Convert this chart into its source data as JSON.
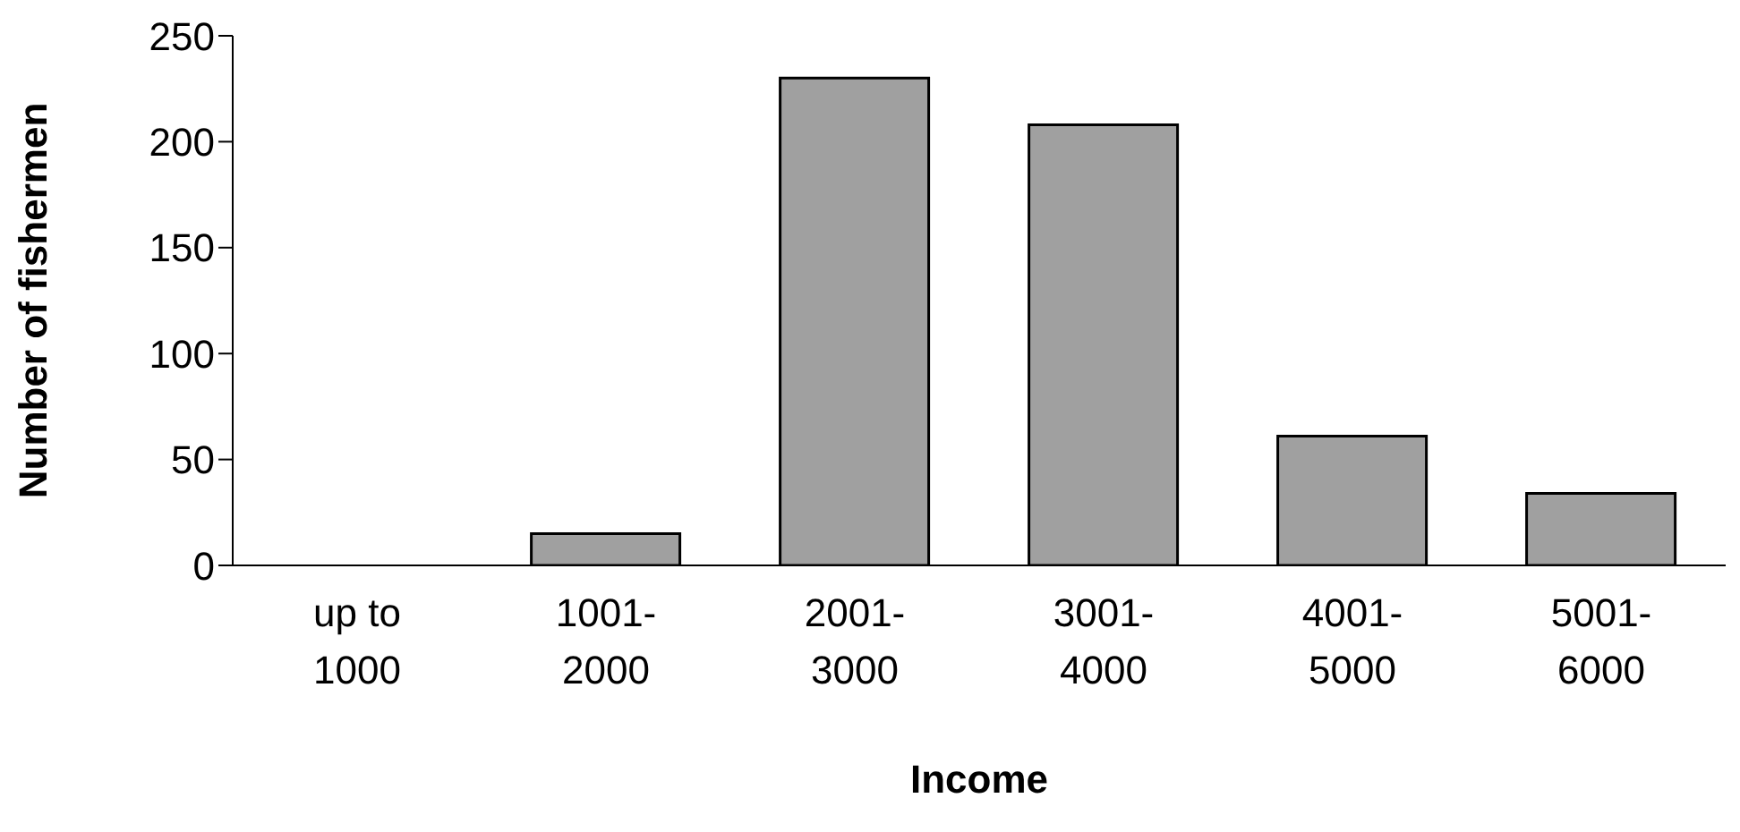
{
  "chart_data": {
    "type": "bar",
    "xlabel": "Income",
    "ylabel": "Number of fishermen",
    "categories": [
      "up to 1000",
      "1001-2000",
      "2001-3000",
      "3001-4000",
      "4001-5000",
      "5001-6000"
    ],
    "values": [
      0,
      15,
      230,
      208,
      61,
      34
    ],
    "color": "#a0a0a0",
    "ylim": [
      0,
      250
    ],
    "yticks": [
      0,
      50,
      100,
      150,
      200,
      250
    ],
    "grid": false
  }
}
